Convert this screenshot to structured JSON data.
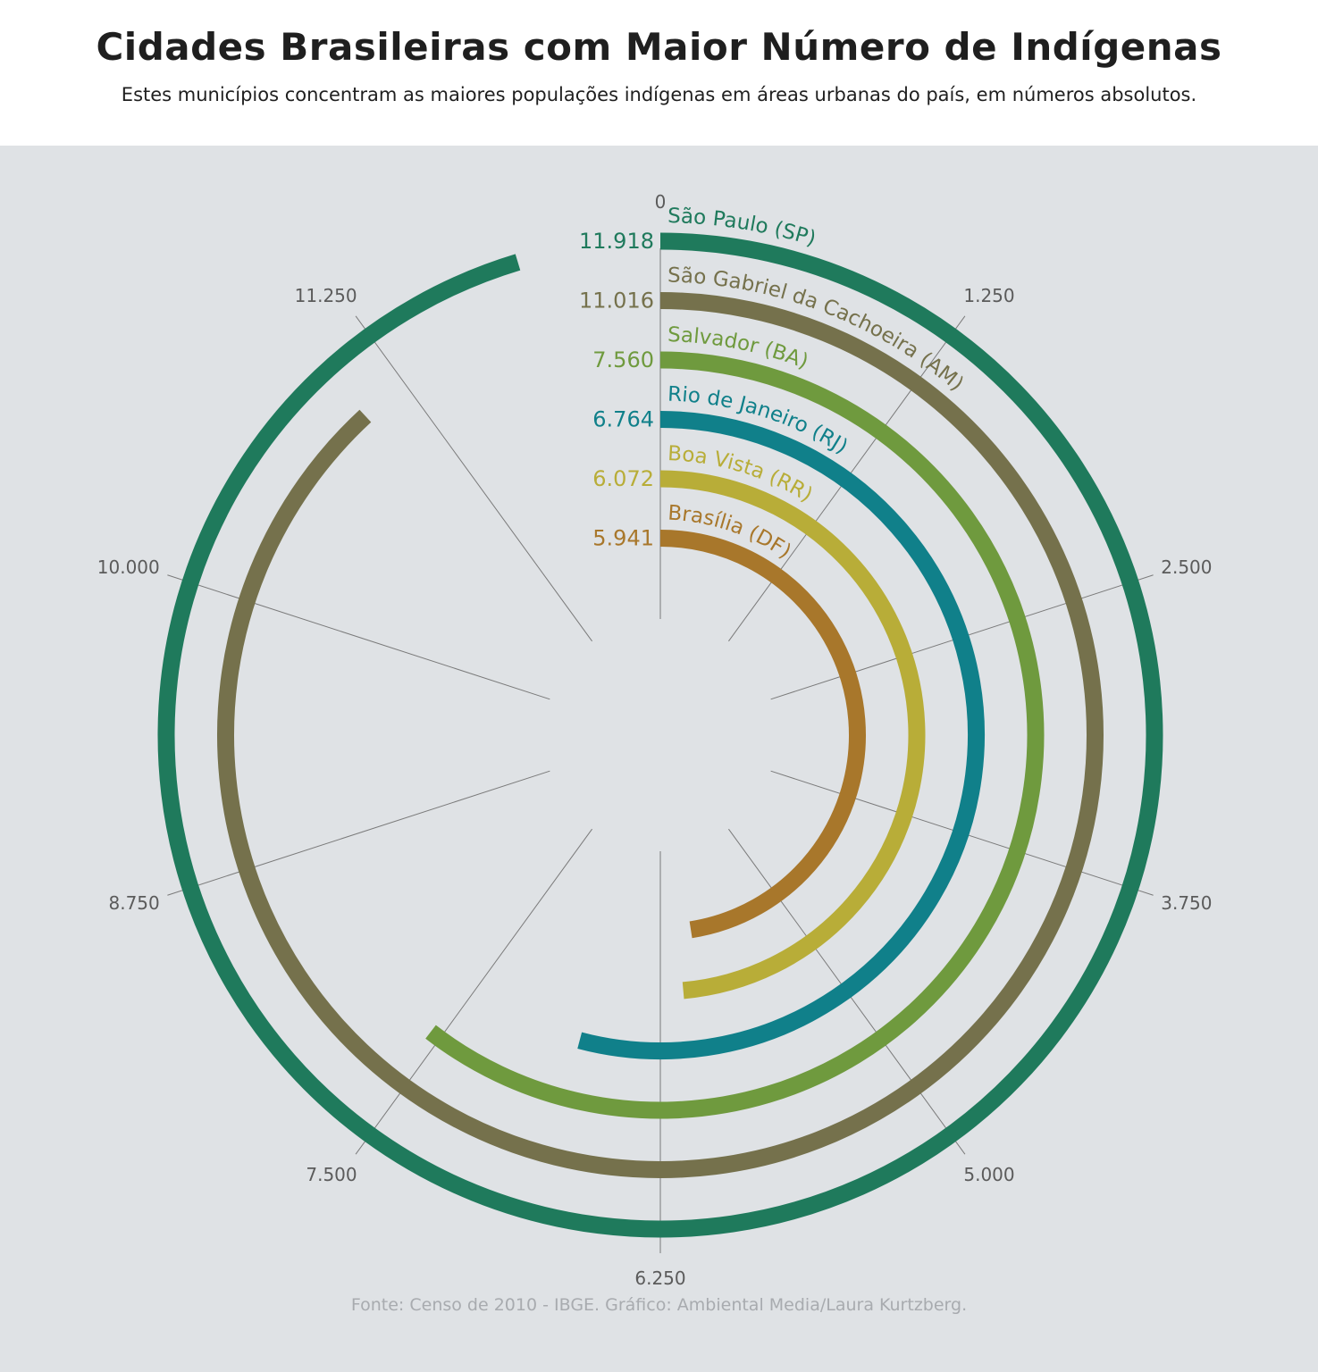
{
  "title": "Cidades Brasileiras com Maior Número de Indígenas",
  "subtitle": "Estes municípios concentram as maiores populações indígenas em áreas urbanas do país, em números absolutos.",
  "source": "Fonte: Censo de 2010 - IBGE. Gráfico: Ambiental Media/Laura Kurtzberg.",
  "chart_data": {
    "type": "radial-bar",
    "axis": {
      "min": 0,
      "max": 12500,
      "ticks": [
        0,
        1250,
        2500,
        3750,
        5000,
        6250,
        7500,
        8750,
        10000,
        11250
      ],
      "tick_labels": [
        "0",
        "1.250",
        "2.500",
        "3.750",
        "5.000",
        "6.250",
        "7.500",
        "8.750",
        "10.000",
        "11.250"
      ]
    },
    "series": [
      {
        "name": "São Paulo (SP)",
        "value": 11918,
        "value_label": "11.918",
        "color": "#1f7a5c"
      },
      {
        "name": "São Gabriel da Cachoeira (AM)",
        "value": 11016,
        "value_label": "11.016",
        "color": "#75714c"
      },
      {
        "name": "Salvador (BA)",
        "value": 7560,
        "value_label": "7.560",
        "color": "#6f9a3e"
      },
      {
        "name": "Rio de Janeiro (RJ)",
        "value": 6764,
        "value_label": "6.764",
        "color": "#10808a"
      },
      {
        "name": "Boa Vista (RR)",
        "value": 6072,
        "value_label": "6.072",
        "color": "#b8ad38"
      },
      {
        "name": "Brasília (DF)",
        "value": 5941,
        "value_label": "5.941",
        "color": "#a8772b"
      }
    ]
  }
}
